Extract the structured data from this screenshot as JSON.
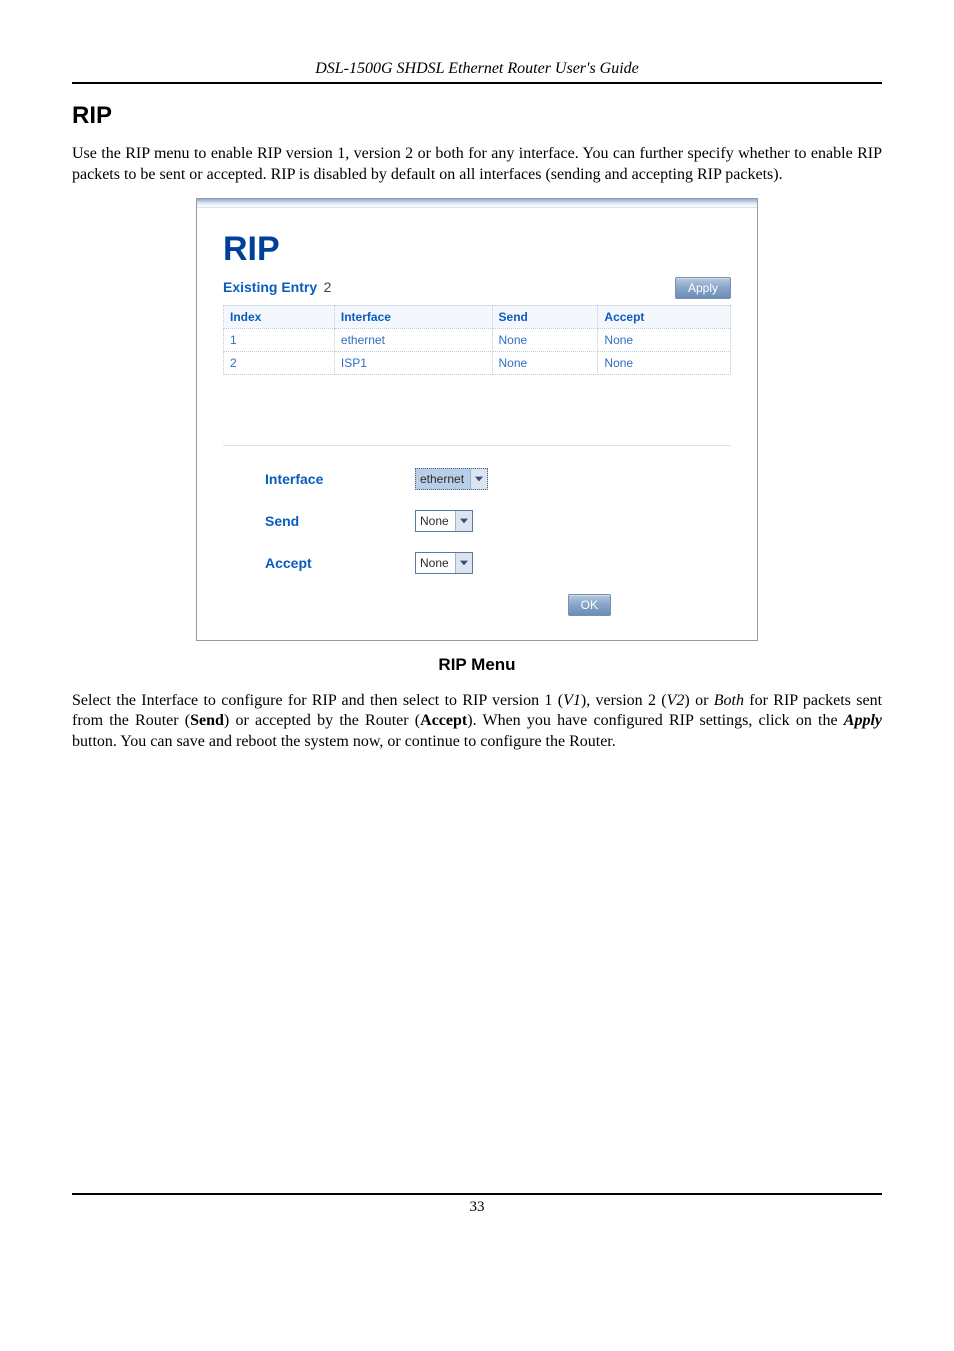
{
  "doc": {
    "header_text": "DSL-1500G SHDSL Ethernet Router User's Guide",
    "section_title": "RIP",
    "intro_paragraph": "Use the RIP menu to enable RIP version 1, version 2 or both for any interface. You can further specify whether to enable RIP packets to be sent or accepted. RIP is disabled by default on all interfaces (sending and accepting RIP packets).",
    "caption": "RIP Menu",
    "outro_paragraph_html": "Select the Interface to configure for RIP and then select to RIP version 1 (<i>V1</i>), version 2 (<i>V2</i>) or <i>Both</i> for RIP packets sent from the Router (<b>Send</b>) or accepted by the Router (<b>Accept</b>). When you have configured RIP settings, click on the <b><i>Apply</i></b> button. You can save and reboot the system now, or continue to configure the Router.",
    "page_number": "33"
  },
  "screenshot": {
    "title": "RIP",
    "existing_entry_label": "Existing Entry",
    "existing_entry_count": "2",
    "apply_button": "Apply",
    "table": {
      "columns": [
        "Index",
        "Interface",
        "Send",
        "Accept"
      ],
      "rows": [
        [
          "1",
          "ethernet",
          "None",
          "None"
        ],
        [
          "2",
          "ISP1",
          "None",
          "None"
        ]
      ],
      "header_bg": "#f4f7fb",
      "header_color": "#0a5cc0",
      "cell_color": "#2f6fbf",
      "border_color": "#b8cbe0"
    },
    "form": {
      "interface_label": "Interface",
      "interface_value": "ethernet",
      "send_label": "Send",
      "send_value": "None",
      "accept_label": "Accept",
      "accept_value": "None"
    },
    "ok_button": "OK"
  },
  "colors": {
    "brand_blue": "#003f9a",
    "link_blue": "#0a5cc0",
    "cell_text": "#2f6fbf",
    "button_bg_top": "#b8c9df",
    "button_bg_bottom": "#6b8db5",
    "select_highlight": "#b9cfe7"
  }
}
